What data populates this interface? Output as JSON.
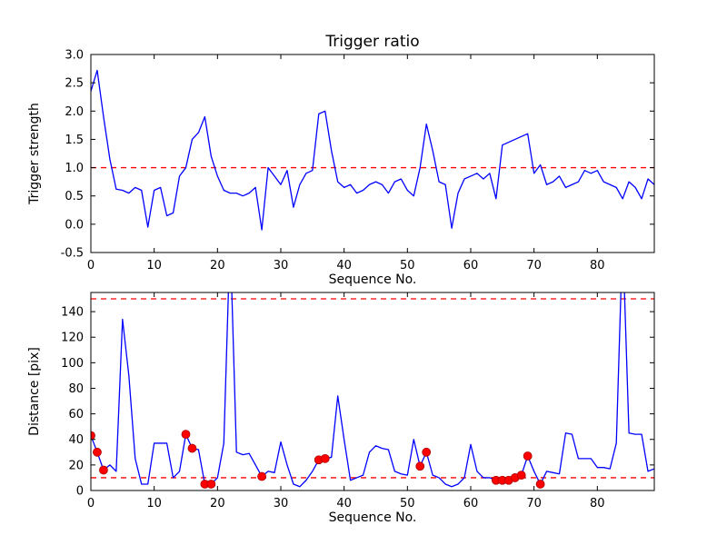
{
  "figure": {
    "background": "#ffffff",
    "axes_color": "#000000",
    "line_color": "#0000ff",
    "dashed_color": "#ff0000",
    "marker_color": "#ff0000"
  },
  "chart_data": [
    {
      "type": "line",
      "name": "trigger-ratio",
      "title": "Trigger ratio",
      "xlabel": "Sequence No.",
      "ylabel": "Trigger strength",
      "xlim": [
        0,
        89
      ],
      "ylim": [
        -0.5,
        3.0
      ],
      "grid": false,
      "legend": null,
      "xtick_labels": [
        "0",
        "10",
        "20",
        "30",
        "40",
        "50",
        "60",
        "70",
        "80"
      ],
      "ytick_labels": [
        "-0.5",
        "0.0",
        "0.5",
        "1.0",
        "1.5",
        "2.0",
        "2.5",
        "3.0"
      ],
      "thresholds": [
        {
          "y": 1.0,
          "color": "#ff0000",
          "style": "dashed"
        }
      ],
      "series": [
        {
          "name": "trigger-strength",
          "color": "#0000ff",
          "x": [
            0,
            1,
            2,
            3,
            4,
            5,
            6,
            7,
            8,
            9,
            10,
            11,
            12,
            13,
            14,
            15,
            16,
            17,
            18,
            19,
            20,
            21,
            22,
            23,
            24,
            25,
            26,
            27,
            28,
            29,
            30,
            31,
            32,
            33,
            34,
            35,
            36,
            37,
            38,
            39,
            40,
            41,
            42,
            43,
            44,
            45,
            46,
            47,
            48,
            49,
            50,
            51,
            52,
            53,
            54,
            55,
            56,
            57,
            58,
            59,
            60,
            61,
            62,
            63,
            64,
            65,
            66,
            67,
            68,
            69,
            70,
            71,
            72,
            73,
            74,
            75,
            76,
            77,
            78,
            79,
            80,
            81,
            82,
            83,
            84,
            85,
            86,
            87,
            88,
            89
          ],
          "y": [
            2.35,
            2.72,
            1.9,
            1.15,
            0.62,
            0.6,
            0.55,
            0.65,
            0.6,
            -0.05,
            0.6,
            0.65,
            0.15,
            0.2,
            0.85,
            1.0,
            1.5,
            1.62,
            1.9,
            1.2,
            0.85,
            0.6,
            0.55,
            0.55,
            0.5,
            0.55,
            0.65,
            -0.1,
            1.0,
            0.85,
            0.7,
            0.95,
            0.3,
            0.7,
            0.9,
            0.95,
            1.95,
            2.0,
            1.3,
            0.75,
            0.65,
            0.7,
            0.55,
            0.6,
            0.7,
            0.75,
            0.7,
            0.55,
            0.75,
            0.8,
            0.6,
            0.5,
            1.0,
            1.77,
            1.3,
            0.75,
            0.7,
            -0.07,
            0.55,
            0.8,
            0.85,
            0.9,
            0.8,
            0.9,
            0.45,
            1.4,
            1.45,
            1.5,
            1.55,
            1.6,
            0.9,
            1.05,
            0.7,
            0.75,
            0.85,
            0.65,
            0.7,
            0.75,
            0.95,
            0.9,
            0.95,
            0.75,
            0.7,
            0.65,
            0.45,
            0.75,
            0.65,
            0.45,
            0.8,
            0.7
          ]
        }
      ]
    },
    {
      "type": "line",
      "name": "distance",
      "title": "",
      "xlabel": "Sequence No.",
      "ylabel": "Distance [pix]",
      "xlim": [
        0,
        89
      ],
      "ylim": [
        0,
        155
      ],
      "grid": false,
      "legend": null,
      "xtick_labels": [
        "0",
        "10",
        "20",
        "30",
        "40",
        "50",
        "60",
        "70",
        "80"
      ],
      "ytick_labels": [
        "0",
        "20",
        "40",
        "60",
        "80",
        "100",
        "120",
        "140"
      ],
      "thresholds": [
        {
          "y": 150,
          "color": "#ff0000",
          "style": "dashed"
        },
        {
          "y": 10,
          "color": "#ff0000",
          "style": "dashed"
        }
      ],
      "series": [
        {
          "name": "distance-pix",
          "color": "#0000ff",
          "x": [
            0,
            1,
            2,
            3,
            4,
            5,
            6,
            7,
            8,
            9,
            10,
            11,
            12,
            13,
            14,
            15,
            16,
            17,
            18,
            19,
            20,
            21,
            22,
            23,
            24,
            25,
            26,
            27,
            28,
            29,
            30,
            31,
            32,
            33,
            34,
            35,
            36,
            37,
            38,
            39,
            40,
            41,
            42,
            43,
            44,
            45,
            46,
            47,
            48,
            49,
            50,
            51,
            52,
            53,
            54,
            55,
            56,
            57,
            58,
            59,
            60,
            61,
            62,
            63,
            64,
            65,
            66,
            67,
            68,
            69,
            70,
            71,
            72,
            73,
            74,
            75,
            76,
            77,
            78,
            79,
            80,
            81,
            82,
            83,
            84,
            85,
            86,
            87,
            88,
            89
          ],
          "y": [
            43,
            30,
            16,
            20,
            15,
            134,
            90,
            25,
            5,
            5,
            37,
            37,
            37,
            10,
            15,
            44,
            33,
            32,
            5,
            5,
            10,
            37,
            200,
            30,
            28,
            29,
            20,
            11,
            15,
            14,
            38,
            20,
            5,
            3,
            8,
            15,
            24,
            25,
            26,
            74,
            40,
            8,
            10,
            12,
            30,
            35,
            33,
            32,
            15,
            13,
            12,
            40,
            19,
            30,
            12,
            10,
            5,
            3,
            5,
            10,
            36,
            15,
            10,
            10,
            8,
            8,
            8,
            10,
            12,
            27,
            15,
            5,
            15,
            14,
            13,
            45,
            44,
            25,
            25,
            25,
            18,
            18,
            17,
            37,
            200,
            45,
            44,
            44,
            15,
            17
          ]
        }
      ],
      "markers": {
        "name": "triggered-points",
        "color": "#ff0000",
        "x": [
          0,
          1,
          2,
          15,
          16,
          18,
          19,
          27,
          36,
          37,
          52,
          53,
          64,
          65,
          66,
          67,
          68,
          69,
          71
        ],
        "y": [
          43,
          30,
          16,
          44,
          33,
          5,
          5,
          11,
          24,
          25,
          19,
          30,
          8,
          8,
          8,
          10,
          12,
          27,
          5
        ]
      }
    }
  ]
}
